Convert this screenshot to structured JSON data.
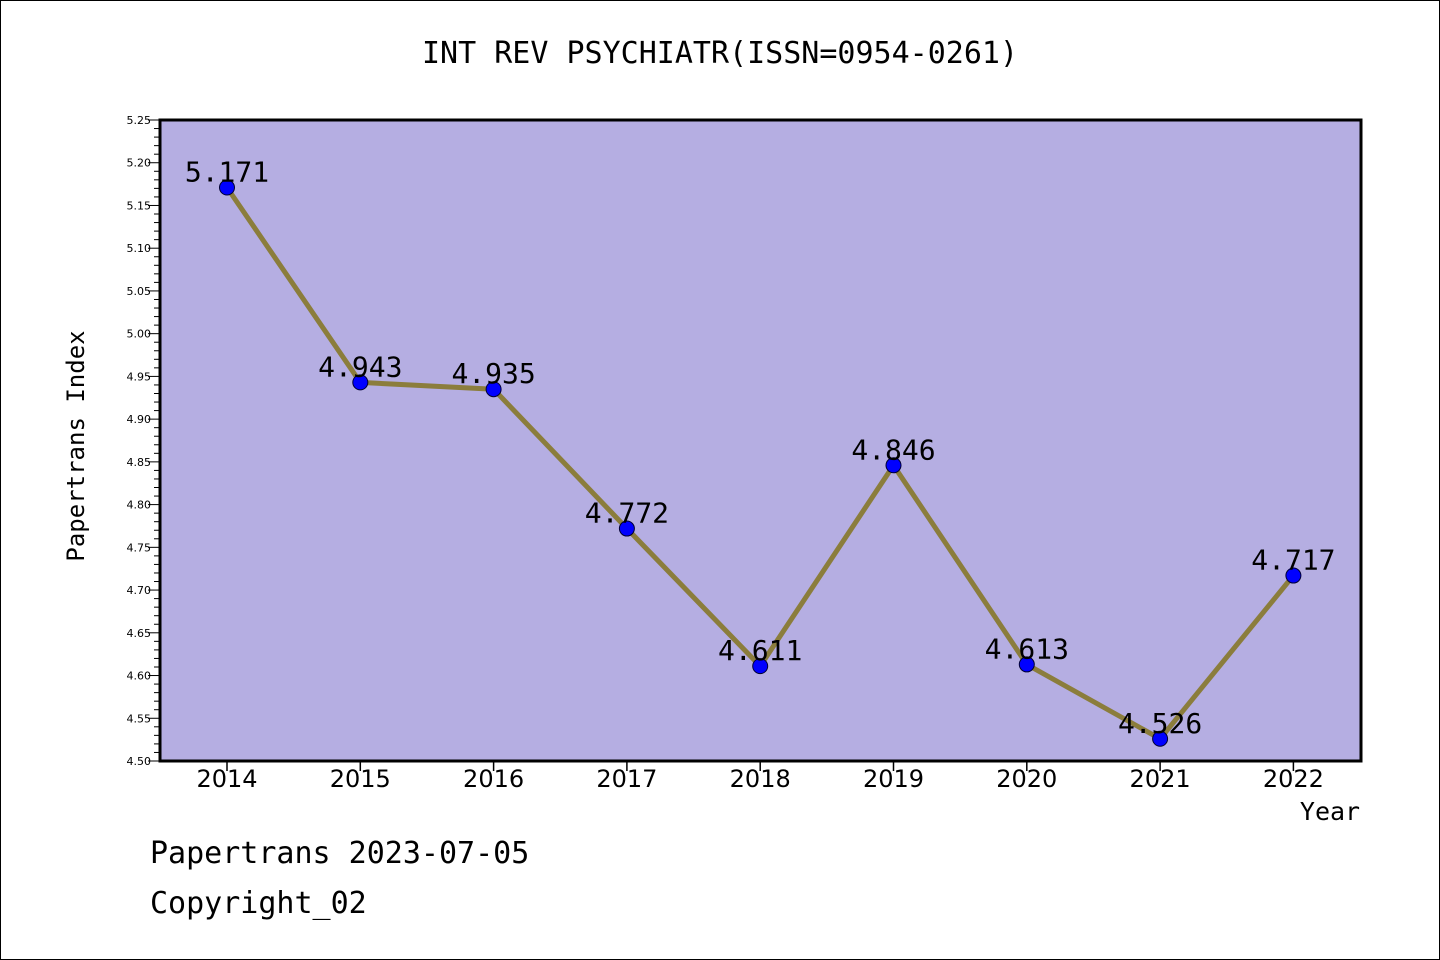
{
  "header": {
    "title": "INT REV PSYCHIATR(ISSN=0954-0261)"
  },
  "footer": {
    "line1": "Papertrans 2023-07-05",
    "line2": "Copyright_02"
  },
  "colors": {
    "plot_background": "#b5aee2",
    "line": "#8b7d3c",
    "marker": "#0000ff",
    "axis": "#000000"
  },
  "chart_data": {
    "type": "line",
    "title": "INT REV PSYCHIATR(ISSN=0954-0261)",
    "xlabel": "Year",
    "ylabel": "Papertrans Index",
    "categories": [
      "2014",
      "2015",
      "2016",
      "2017",
      "2018",
      "2019",
      "2020",
      "2021",
      "2022"
    ],
    "values": [
      5.171,
      4.943,
      4.935,
      4.772,
      4.611,
      4.846,
      4.613,
      4.526,
      4.717
    ],
    "value_labels": [
      "5.171",
      "4.943",
      "4.935",
      "4.772",
      "4.611",
      "4.846",
      "4.613",
      "4.526",
      "4.717"
    ],
    "ylim": [
      4.5,
      5.25
    ],
    "yticks": [
      "4.50",
      "4.55",
      "4.60",
      "4.65",
      "4.70",
      "4.75",
      "4.80",
      "4.85",
      "4.90",
      "4.95",
      "5.00",
      "5.05",
      "5.10",
      "5.15",
      "5.20",
      "5.25"
    ],
    "grid": false,
    "legend": "none"
  }
}
